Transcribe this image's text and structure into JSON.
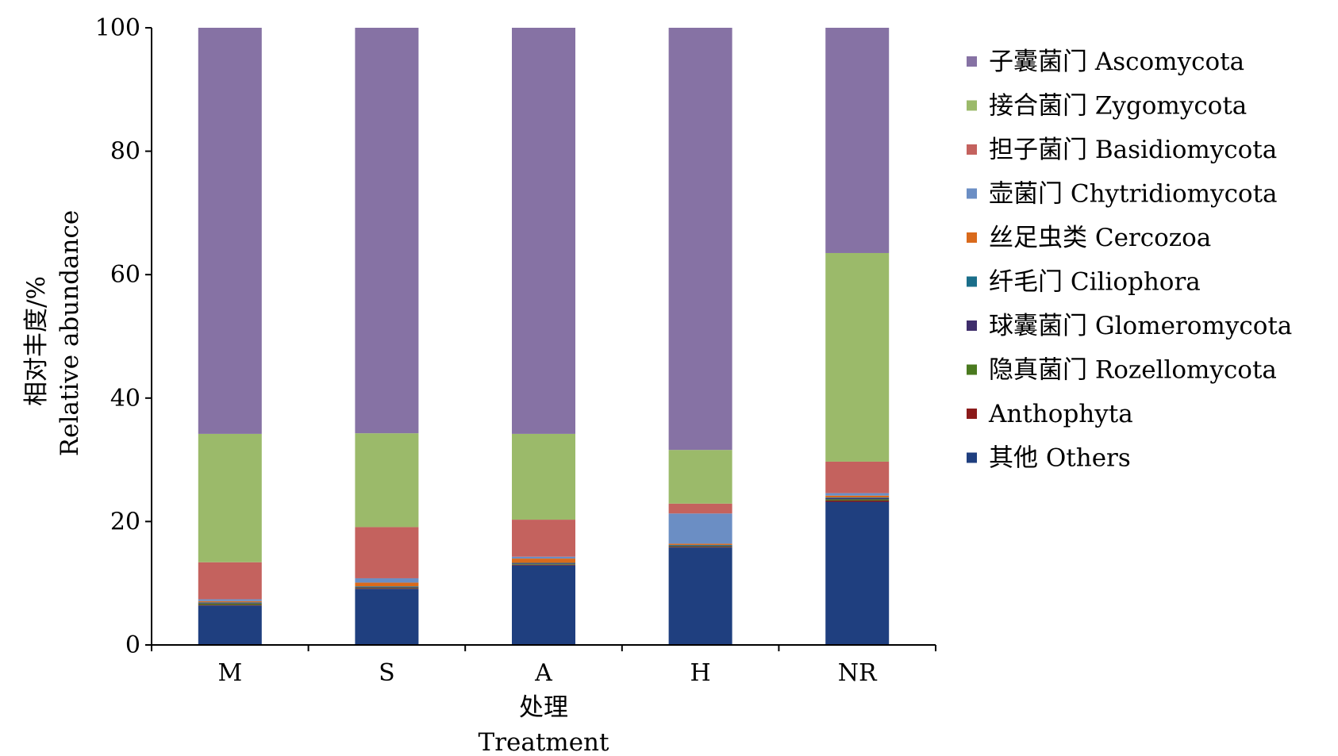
{
  "chart_data": {
    "type": "bar",
    "stacked": true,
    "categories": [
      "M",
      "S",
      "A",
      "H",
      "NR"
    ],
    "xlabel": "处理",
    "xlabel_en": "Treatment",
    "ylabel": "相对丰度/%",
    "ylabel_en": "Relative abundance",
    "ylim": [
      0,
      100
    ],
    "yticks": [
      0,
      20,
      40,
      60,
      80,
      100
    ],
    "grid": false,
    "legend_position": "right",
    "series": [
      {
        "name": "其他 Others",
        "color": "#1f3f7f",
        "values": [
          6.4,
          9.1,
          12.9,
          15.8,
          23.2
        ]
      },
      {
        "name": "Anthophyta",
        "color": "#8b1a1a",
        "values": [
          0.1,
          0.1,
          0.1,
          0.1,
          0.2
        ]
      },
      {
        "name": "隐真菌门 Rozellomycota",
        "color": "#4a7a1f",
        "values": [
          0.2,
          0.1,
          0.1,
          0.1,
          0.2
        ]
      },
      {
        "name": "球囊菌门 Glomeromycota",
        "color": "#3e2d6b",
        "values": [
          0.1,
          0.1,
          0.1,
          0.1,
          0.2
        ]
      },
      {
        "name": "纤毛门 Ciliophora",
        "color": "#1a6e8a",
        "values": [
          0.1,
          0.1,
          0.1,
          0.1,
          0.1
        ]
      },
      {
        "name": "丝足虫类 Cercozoa",
        "color": "#d96a1c",
        "values": [
          0.2,
          0.6,
          0.7,
          0.2,
          0.3
        ]
      },
      {
        "name": "壶菌门 Chytridiomycota",
        "color": "#6b8ec4",
        "values": [
          0.3,
          0.7,
          0.3,
          4.9,
          0.4
        ]
      },
      {
        "name": "担子菌门 Basidiomycota",
        "color": "#c4625e",
        "values": [
          6.0,
          8.3,
          6.0,
          1.6,
          5.1
        ]
      },
      {
        "name": "接合菌门 Zygomycota",
        "color": "#9bba6a",
        "values": [
          20.8,
          15.2,
          13.9,
          8.7,
          33.8
        ]
      },
      {
        "name": "子囊菌门 Ascomycota",
        "color": "#8672a4",
        "values": [
          65.8,
          65.7,
          65.8,
          68.4,
          36.5
        ]
      }
    ],
    "legend_order": [
      "子囊菌门 Ascomycota",
      "接合菌门 Zygomycota",
      "担子菌门 Basidiomycota",
      "壶菌门 Chytridiomycota",
      "丝足虫类 Cercozoa",
      "纤毛门 Ciliophora",
      "球囊菌门 Glomeromycota",
      "隐真菌门 Rozellomycota",
      "Anthophyta",
      "其他 Others"
    ]
  }
}
